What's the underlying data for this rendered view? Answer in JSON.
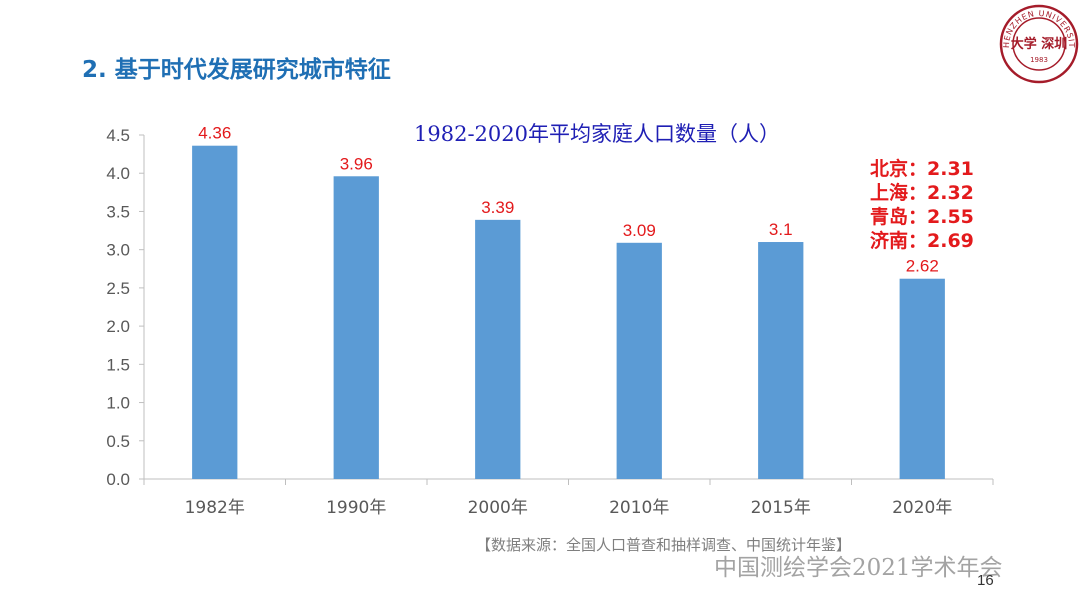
{
  "slide": {
    "title": "2.  基于时代发展研究城市特征",
    "source": "【数据来源：全国人口普查和抽样调查、中国统计年鉴】",
    "watermark": "中国测绘学会2021学术年会",
    "page_number": "16",
    "logo": {
      "text_top": "SHENZHEN UNIVERSITY",
      "text_center": "大学 深圳",
      "year": "1983"
    }
  },
  "annotation": {
    "cities": [
      {
        "label": "北京：2.31"
      },
      {
        "label": "上海：2.32"
      },
      {
        "label": "青岛：2.55"
      },
      {
        "label": "济南：2.69"
      }
    ]
  },
  "colors": {
    "bar": "#5b9bd5",
    "title": "#1f6fb4",
    "chart_title": "#1f1fb4",
    "data_label": "#e31a1c"
  },
  "chart_data": {
    "type": "bar",
    "title": "1982-2020年平均家庭人口数量（人）",
    "categories": [
      "1982年",
      "1990年",
      "2000年",
      "2010年",
      "2015年",
      "2020年"
    ],
    "values": [
      4.36,
      3.96,
      3.39,
      3.09,
      3.1,
      2.62
    ],
    "data_labels": [
      "4.36",
      "3.96",
      "3.39",
      "3.09",
      "3.1",
      "2.62"
    ],
    "yticks": [
      "0.0",
      "0.5",
      "1.0",
      "1.5",
      "2.0",
      "2.5",
      "3.0",
      "3.5",
      "4.0",
      "4.5"
    ],
    "ylim": [
      0,
      4.5
    ],
    "xlabel": "",
    "ylabel": "",
    "grid": false,
    "legend": "none"
  }
}
